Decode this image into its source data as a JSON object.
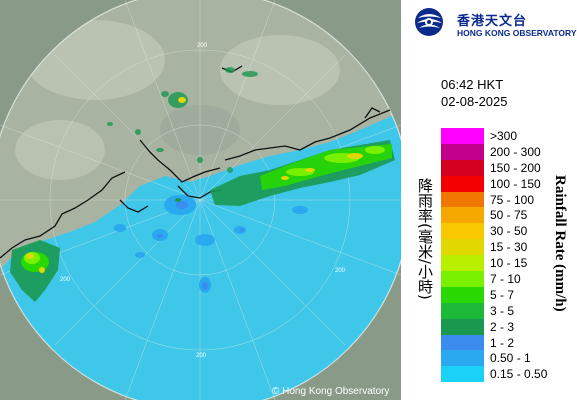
{
  "header": {
    "logo_zh": "香港天文台",
    "logo_en": "HONG KONG OBSERVATORY",
    "time": "06:42 HKT",
    "date": "02-08-2025"
  },
  "legend": {
    "title_zh": "降雨率(毫米/小時)",
    "title_en": "Rainfall Rate (mm/h)",
    "items": [
      {
        "label": ">300",
        "color": "#ff00ff"
      },
      {
        "label": "200 - 300",
        "color": "#c0008a"
      },
      {
        "label": "150 - 200",
        "color": "#d40020"
      },
      {
        "label": "100 - 150",
        "color": "#f50000"
      },
      {
        "label": "75 - 100",
        "color": "#f07800"
      },
      {
        "label": "50 - 75",
        "color": "#f5a800"
      },
      {
        "label": "30 - 50",
        "color": "#f8c800"
      },
      {
        "label": "15 - 30",
        "color": "#e0d800"
      },
      {
        "label": "10 - 15",
        "color": "#b8f000"
      },
      {
        "label": "7 - 10",
        "color": "#78f000"
      },
      {
        "label": "5 - 7",
        "color": "#28d800"
      },
      {
        "label": "3 - 5",
        "color": "#1cb838"
      },
      {
        "label": "2 - 3",
        "color": "#1a9850"
      },
      {
        "label": "1 - 2",
        "color": "#3c8cf0"
      },
      {
        "label": "0.50 - 1",
        "color": "#2aa8f0"
      },
      {
        "label": "0.15 - 0.50",
        "color": "#1ad2f5"
      }
    ]
  },
  "map": {
    "ring_labels": [
      "200",
      "200",
      "200",
      "200"
    ],
    "copyright": "© Hong Kong Observatory"
  }
}
